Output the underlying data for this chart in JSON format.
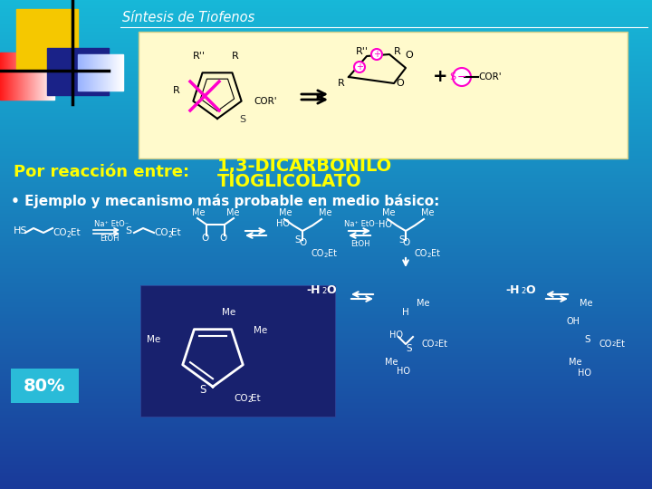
{
  "title": "Síntesis de Tiofenos",
  "bg_top": "#17B8D8",
  "bg_bottom": "#1A3A9A",
  "content_box_color": "#FFFACC",
  "text_yellow": "#FFFF00",
  "text_white": "#FFFFFF",
  "line1": "Por reacción entre:",
  "line2a": "1,3-DICARBONILO",
  "line2b": "TIOGLICOLATO",
  "bullet": "• Ejemplo y mecanismo más probable en medio básico:",
  "percent_label": "80%",
  "percent_box_color": "#2ABBD8",
  "dark_box_color": "#18216E",
  "logo_yellow": "#F5C800",
  "logo_red_left": "#DD2233",
  "logo_blue_dark": "#1A2288",
  "logo_blue_light": "#AABBEE",
  "magenta": "#FF00CC"
}
